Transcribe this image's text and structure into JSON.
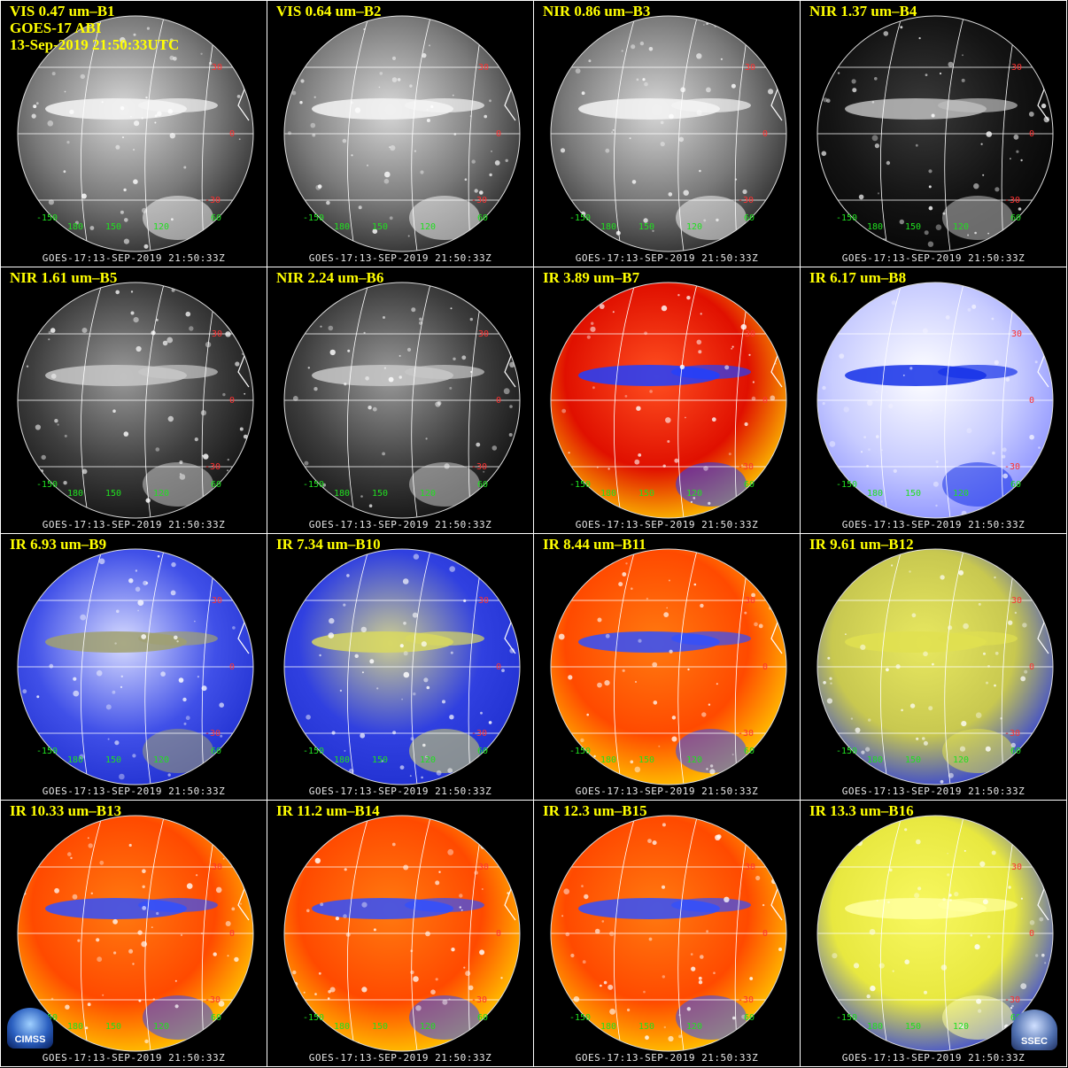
{
  "header_lines": [
    "GOES-17 ABI",
    "13-Sep-2019 21:50:33UTC"
  ],
  "footer": "GOES-17:13-SEP-2019 21:50:33Z",
  "lat_labels": [
    "30",
    "0",
    "-30"
  ],
  "lon_labels": [
    "-150",
    "180",
    "150",
    "120",
    "60"
  ],
  "logos": {
    "left": "CIMSS",
    "right": "SSEC"
  },
  "panels": [
    {
      "title": "VIS 0.47 um–B1",
      "palette": "gray"
    },
    {
      "title": "VIS 0.64 um–B2",
      "palette": "gray"
    },
    {
      "title": "NIR 0.86 um–B3",
      "palette": "gray"
    },
    {
      "title": "NIR 1.37 um–B4",
      "palette": "dark"
    },
    {
      "title": "NIR 1.61 um–B5",
      "palette": "graydark"
    },
    {
      "title": "NIR 2.24 um–B6",
      "palette": "graydark"
    },
    {
      "title": "IR 3.89 um–B7",
      "palette": "red"
    },
    {
      "title": "IR 6.17 um–B8",
      "palette": "blue"
    },
    {
      "title": "IR 6.93 um–B9",
      "palette": "blue2"
    },
    {
      "title": "IR 7.34 um–B10",
      "palette": "blueyellow"
    },
    {
      "title": "IR 8.44 um–B11",
      "palette": "orange"
    },
    {
      "title": "IR 9.61 um–B12",
      "palette": "yellowblue"
    },
    {
      "title": "IR 10.33 um–B13",
      "palette": "orange"
    },
    {
      "title": "IR 11.2 um–B14",
      "palette": "orange"
    },
    {
      "title": "IR 12.3 um–B15",
      "palette": "orange"
    },
    {
      "title": "IR 13.3 um–B16",
      "palette": "yellow"
    }
  ],
  "colors": {
    "title": "#ffff00",
    "lat_label": "#ff3030",
    "lon_label": "#20e020",
    "grid": "#ffffff",
    "footer": "#e8e8e8"
  }
}
